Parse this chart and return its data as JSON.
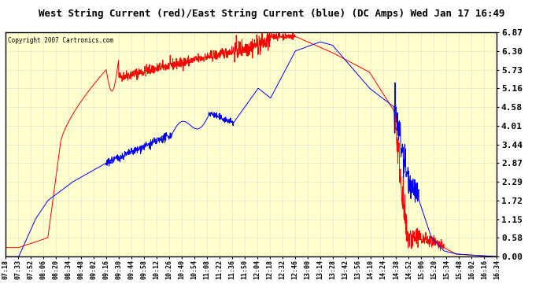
{
  "title": "West String Current (red)/East String Current (blue) (DC Amps) Wed Jan 17 16:49",
  "copyright": "Copyright 2007 Cartronics.com",
  "yticks": [
    0.0,
    0.58,
    1.15,
    1.72,
    2.29,
    2.87,
    3.44,
    4.01,
    4.58,
    5.16,
    5.73,
    6.3,
    6.87
  ],
  "ymin": 0.0,
  "ymax": 6.87,
  "xtick_labels": [
    "07:18",
    "07:33",
    "07:52",
    "08:06",
    "08:20",
    "08:34",
    "08:48",
    "09:02",
    "09:16",
    "09:30",
    "09:44",
    "09:58",
    "10:12",
    "10:26",
    "10:40",
    "10:54",
    "11:08",
    "11:22",
    "11:36",
    "11:50",
    "12:04",
    "12:18",
    "12:32",
    "12:46",
    "13:00",
    "13:14",
    "13:28",
    "13:42",
    "13:56",
    "14:10",
    "14:24",
    "14:38",
    "14:52",
    "15:06",
    "15:20",
    "15:34",
    "15:48",
    "16:02",
    "16:16",
    "16:34"
  ],
  "bg_color": "#FFFFD0",
  "plot_bg_color": "#FFFFD0",
  "grid_color": "#BBBBBB",
  "red_color": "#FF0000",
  "blue_color": "#0000FF",
  "title_bg_color": "#FFFFFF",
  "font_family": "monospace"
}
